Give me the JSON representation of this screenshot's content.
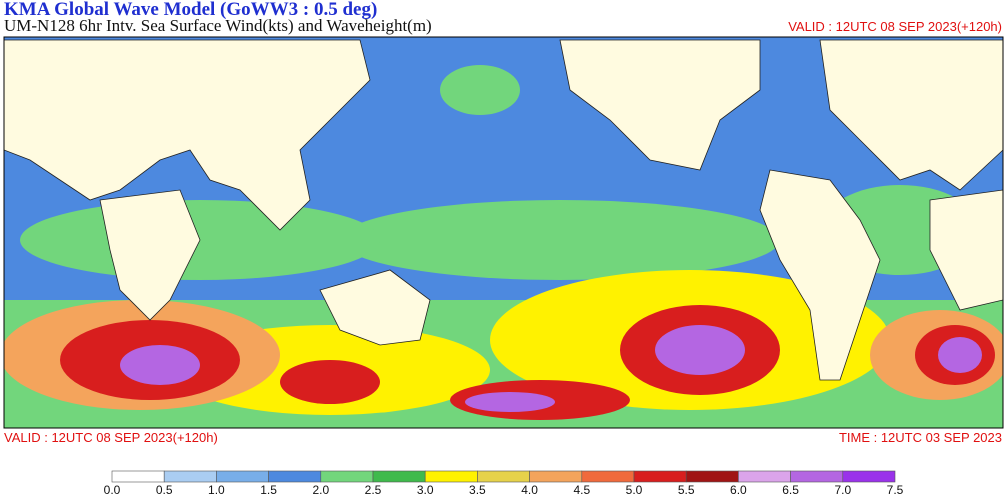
{
  "header": {
    "title": "KMA  Global Wave Model (GoWW3 : 0.5 deg)",
    "subtitle": "UM-N128  6hr Intv. Sea Surface Wind(kts) and Waveheight(m)",
    "valid_top": "VALID : 12UTC 08 SEP 2023(+120h)"
  },
  "footer": {
    "valid": "VALID : 12UTC 08 SEP 2023(+120h)",
    "time": "TIME : 12UTC 03 SEP 2023"
  },
  "legend": {
    "labels": [
      "0.0",
      "0.5",
      "1.0",
      "1.5",
      "2.0",
      "2.5",
      "3.0",
      "3.5",
      "4.0",
      "4.5",
      "5.0",
      "5.5",
      "6.0",
      "6.5",
      "7.0",
      "7.5"
    ],
    "colors": [
      "#ffffff",
      "#aacdf2",
      "#78aee9",
      "#4d89df",
      "#72d67c",
      "#3fba4c",
      "#fff200",
      "#e6d24a",
      "#f4a45c",
      "#f06a3c",
      "#d81e1e",
      "#a01414",
      "#dba4ea",
      "#b466e2",
      "#9a32ea"
    ]
  }
}
